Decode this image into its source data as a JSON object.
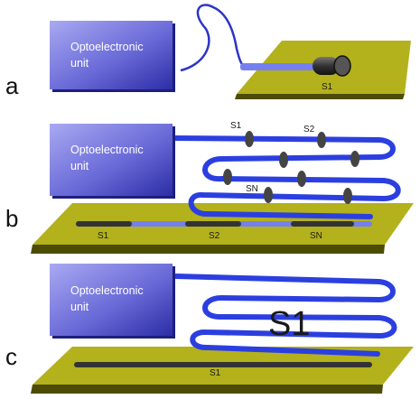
{
  "colors": {
    "unit_fill_light": "#a9a9f2",
    "unit_fill_dark": "#2d2da6",
    "plate_top": "#b3b11c",
    "plate_edge": "#4d4c06",
    "fiber": "#3344e6",
    "sensor": "#333333",
    "highlight": "#7d86ff"
  },
  "panels": [
    {
      "letter": "a",
      "unit": [
        "Optoelectronic",
        "unit"
      ],
      "sensor_labels": [
        "S1"
      ]
    },
    {
      "letter": "b",
      "unit": [
        "Optoelectronic",
        "unit"
      ],
      "sensor_labels": [
        "S1",
        "S2",
        "SN"
      ],
      "plate_labels": [
        "S1",
        "S2",
        "SN"
      ]
    },
    {
      "letter": "c",
      "unit": [
        "Optoelectronic",
        "unit"
      ],
      "big_label": "S1",
      "plate_labels": [
        "S1"
      ]
    }
  ]
}
